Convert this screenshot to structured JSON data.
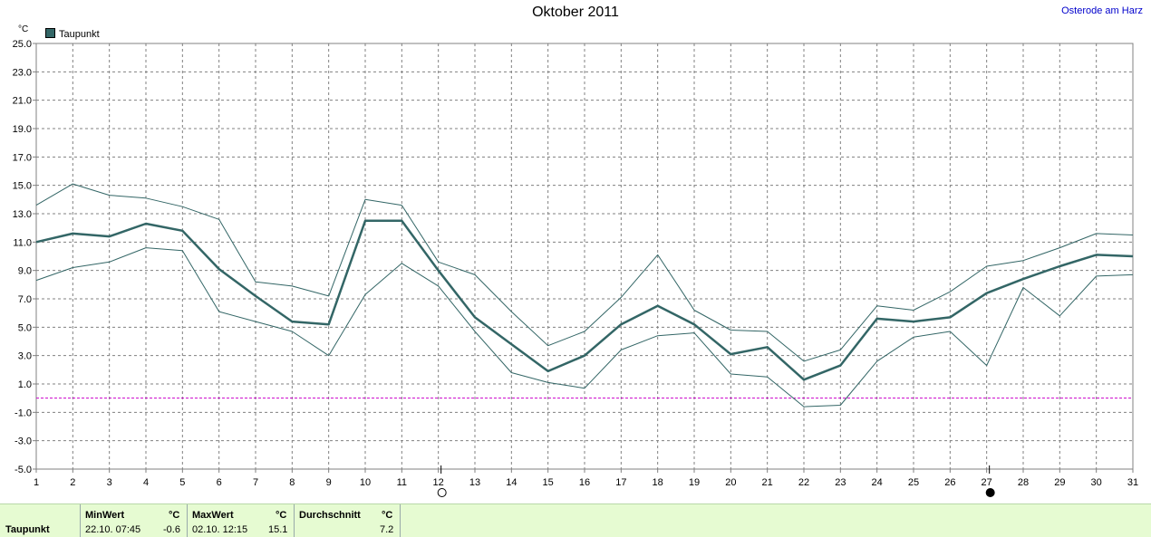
{
  "header": {
    "title": "Oktober 2011",
    "location": "Osterode am Harz",
    "unit": "°C"
  },
  "legend": {
    "label": "Taupunkt",
    "color": "#336666"
  },
  "chart_data": {
    "type": "line",
    "title": "Oktober 2011",
    "xlabel": "",
    "ylabel": "°C",
    "x": [
      1,
      2,
      3,
      4,
      5,
      6,
      7,
      8,
      9,
      10,
      11,
      12,
      13,
      14,
      15,
      16,
      17,
      18,
      19,
      20,
      21,
      22,
      23,
      24,
      25,
      26,
      27,
      28,
      29,
      30,
      31
    ],
    "xlim": [
      1,
      31
    ],
    "ylim": [
      -5,
      25
    ],
    "yticks": [
      25.0,
      23.0,
      21.0,
      19.0,
      17.0,
      15.0,
      13.0,
      11.0,
      9.0,
      7.0,
      5.0,
      3.0,
      1.0,
      -1.0,
      -3.0,
      -5.0
    ],
    "ytick_labels": [
      "25.0",
      "23.0",
      "21.0",
      "19.0",
      "17.0",
      "15.0",
      "13.0",
      "11.0",
      "9.0",
      "7.0",
      "5.0",
      "3.0",
      "1.0",
      "-1.0",
      "-3.0",
      "-5.0"
    ],
    "grid": true,
    "reference_line": {
      "y": 0,
      "color": "#cc00cc"
    },
    "markers": [
      {
        "x": 12,
        "symbol": "full-moon"
      },
      {
        "x": 27,
        "symbol": "new-moon"
      }
    ],
    "series": [
      {
        "name": "Taupunkt",
        "role": "mean",
        "color": "#336666",
        "values": [
          11.0,
          11.6,
          11.4,
          12.3,
          11.8,
          9.1,
          7.2,
          5.4,
          5.2,
          12.5,
          12.5,
          9.0,
          5.7,
          3.8,
          1.9,
          3.0,
          5.2,
          6.5,
          5.2,
          3.1,
          3.6,
          1.3,
          2.3,
          5.6,
          5.4,
          5.7,
          7.4,
          8.4,
          9.3,
          10.1,
          10.0
        ]
      },
      {
        "role": "max",
        "color": "#336666",
        "values": [
          13.6,
          15.1,
          14.3,
          14.1,
          13.5,
          12.6,
          8.2,
          7.9,
          7.2,
          14.0,
          13.6,
          9.6,
          8.7,
          6.1,
          3.7,
          4.7,
          7.1,
          10.1,
          6.2,
          4.8,
          4.7,
          2.6,
          3.4,
          6.5,
          6.2,
          7.5,
          9.3,
          9.7,
          10.6,
          11.6,
          11.5
        ]
      },
      {
        "role": "min",
        "color": "#336666",
        "values": [
          8.3,
          9.2,
          9.6,
          10.6,
          10.4,
          6.1,
          5.4,
          4.7,
          3.0,
          7.3,
          9.5,
          7.9,
          4.7,
          1.8,
          1.1,
          0.7,
          3.4,
          4.4,
          4.6,
          1.7,
          1.5,
          -0.6,
          -0.5,
          2.6,
          4.3,
          4.7,
          2.3,
          7.8,
          5.8,
          8.6,
          8.7
        ]
      }
    ]
  },
  "stats": {
    "row_label": "Taupunkt",
    "min": {
      "header": "MinWert",
      "unit": "°C",
      "time": "22.10.  07:45",
      "value": "-0.6"
    },
    "max": {
      "header": "MaxWert",
      "unit": "°C",
      "time": "02.10.  12:15",
      "value": "15.1"
    },
    "avg": {
      "header": "Durchschnitt",
      "unit": "°C",
      "value": "7.2"
    }
  }
}
